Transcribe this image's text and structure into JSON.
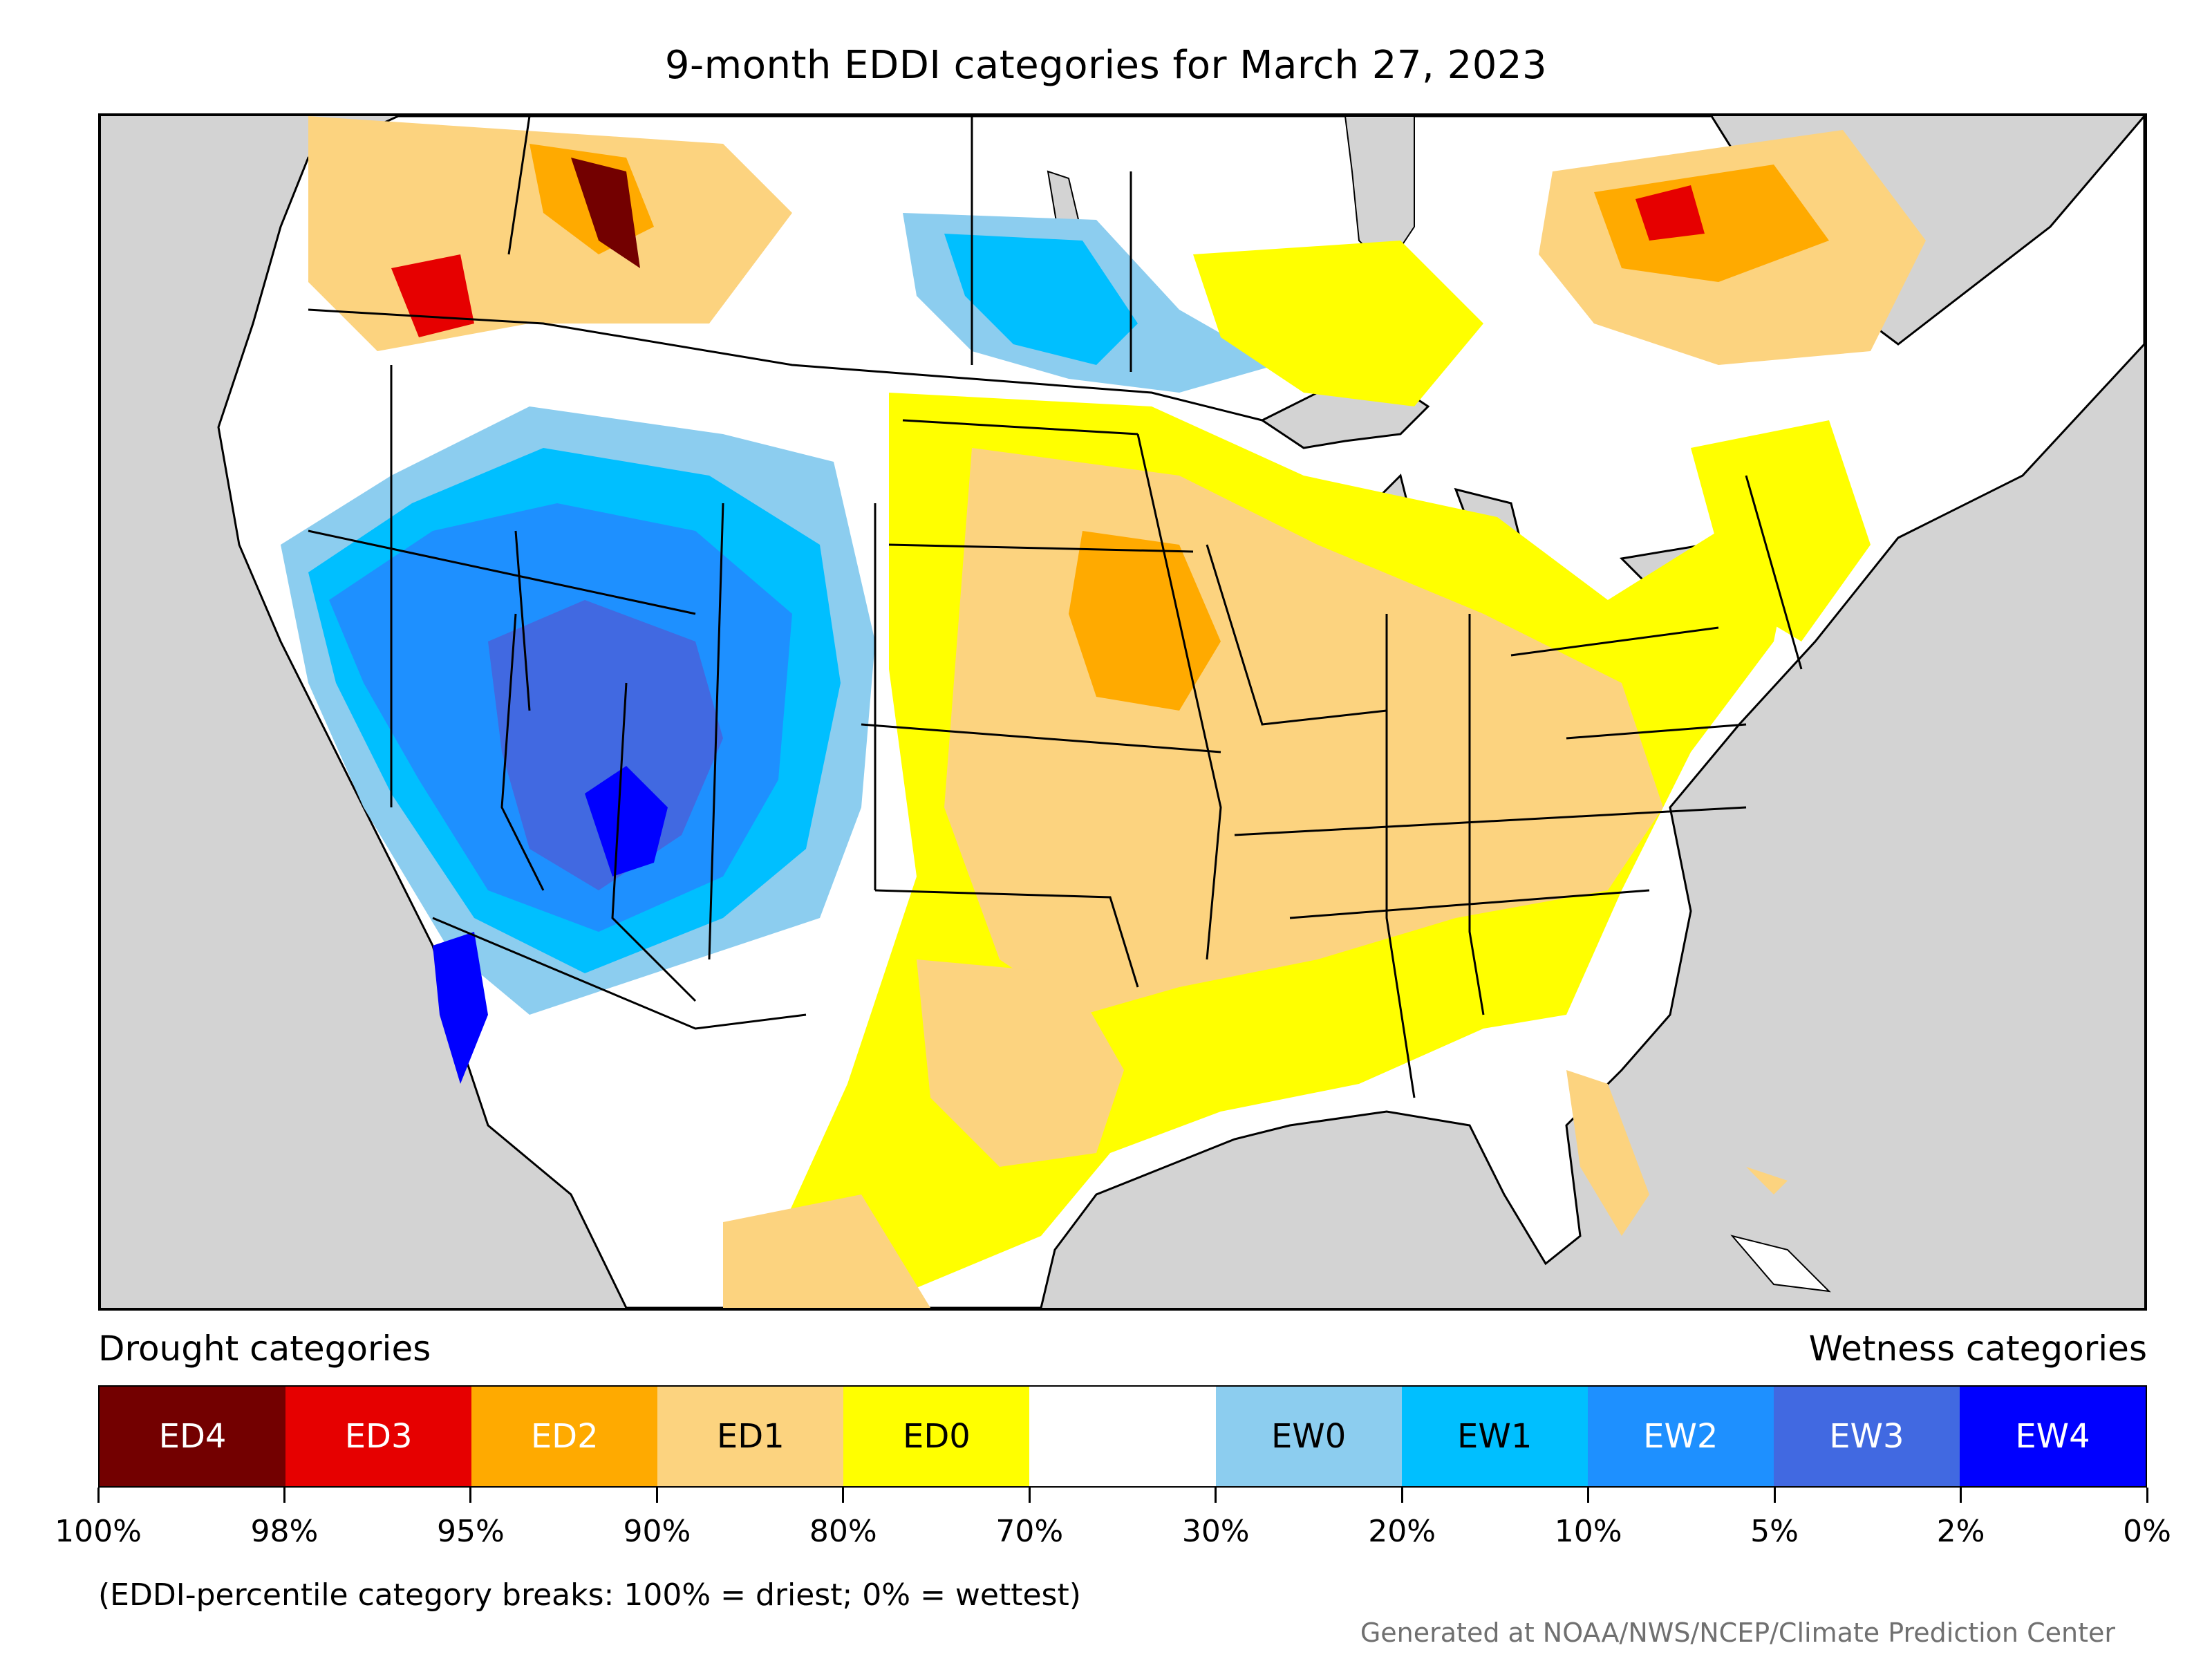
{
  "title": "9-month EDDI categories for March 27, 2023",
  "legend": {
    "drought_heading": "Drought categories",
    "wetness_heading": "Wetness categories",
    "categories": [
      {
        "label": "ED4",
        "color": "#730000",
        "text_color": "#ffffff"
      },
      {
        "label": "ED3",
        "color": "#e60000",
        "text_color": "#ffffff"
      },
      {
        "label": "ED2",
        "color": "#ffaa00",
        "text_color": "#ffffff"
      },
      {
        "label": "ED1",
        "color": "#fcd37f",
        "text_color": "#000000"
      },
      {
        "label": "ED0",
        "color": "#ffff00",
        "text_color": "#000000"
      },
      {
        "label": "",
        "color": "#ffffff",
        "text_color": "#000000"
      },
      {
        "label": "EW0",
        "color": "#8ccdef",
        "text_color": "#000000"
      },
      {
        "label": "EW1",
        "color": "#00bfff",
        "text_color": "#000000"
      },
      {
        "label": "EW2",
        "color": "#1e90ff",
        "text_color": "#ffffff"
      },
      {
        "label": "EW3",
        "color": "#4169e1",
        "text_color": "#ffffff"
      },
      {
        "label": "EW4",
        "color": "#0000ff",
        "text_color": "#ffffff"
      }
    ],
    "breaks": [
      "100%",
      "98%",
      "95%",
      "90%",
      "80%",
      "70%",
      "30%",
      "20%",
      "10%",
      "5%",
      "2%",
      "0%"
    ]
  },
  "note": "(EDDI-percentile category breaks: 100% = driest; 0% = wettest)",
  "credit": "Generated at NOAA/NWS/NCEP/Climate Prediction Center",
  "map": {
    "ocean_color": "#d3d3d3",
    "land_color": "#ffffff"
  }
}
